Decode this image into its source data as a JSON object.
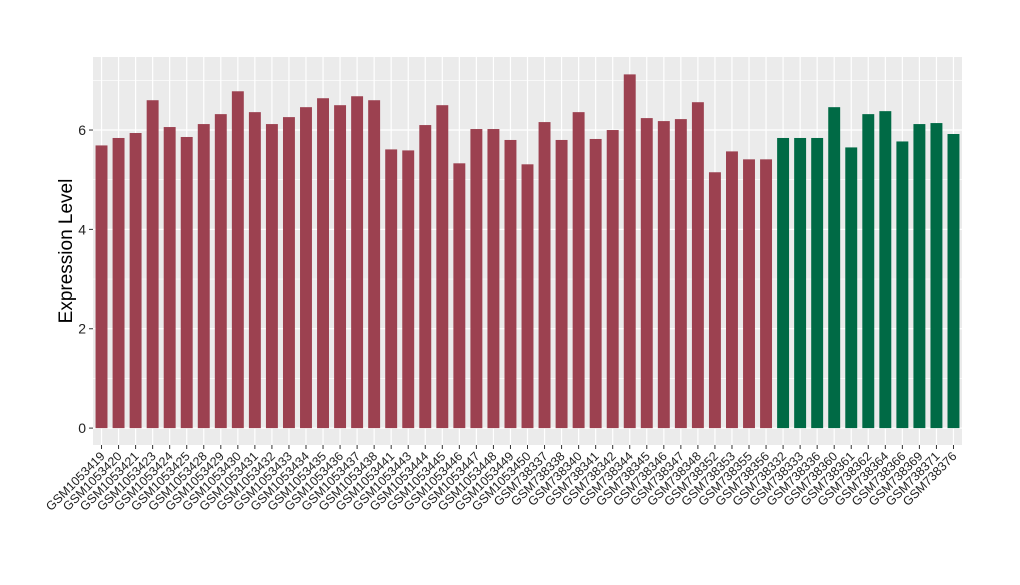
{
  "chart_data": {
    "type": "bar",
    "title": "",
    "xlabel": "",
    "ylabel": "Expression Level",
    "ylim": [
      -0.34,
      7.47
    ],
    "yticks": [
      0,
      2,
      4,
      6
    ],
    "grid": true,
    "legend": "none",
    "colors": {
      "group1": "#9c4150",
      "group2": "#006a45",
      "panel": "#ebebeb",
      "grid": "#ffffff"
    },
    "categories": [
      "GSM1053419",
      "GSM1053420",
      "GSM1053421",
      "GSM1053423",
      "GSM1053424",
      "GSM1053425",
      "GSM1053428",
      "GSM1053429",
      "GSM1053430",
      "GSM1053431",
      "GSM1053432",
      "GSM1053433",
      "GSM1053434",
      "GSM1053435",
      "GSM1053436",
      "GSM1053437",
      "GSM1053438",
      "GSM1053441",
      "GSM1053443",
      "GSM1053444",
      "GSM1053445",
      "GSM1053446",
      "GSM1053447",
      "GSM1053448",
      "GSM1053449",
      "GSM1053450",
      "GSM738337",
      "GSM738338",
      "GSM738340",
      "GSM738341",
      "GSM738342",
      "GSM738344",
      "GSM738345",
      "GSM738346",
      "GSM738347",
      "GSM738348",
      "GSM738352",
      "GSM738353",
      "GSM738355",
      "GSM738356",
      "GSM738332",
      "GSM738333",
      "GSM738336",
      "GSM738360",
      "GSM738361",
      "GSM738362",
      "GSM738364",
      "GSM738366",
      "GSM738369",
      "GSM738371",
      "GSM738376"
    ],
    "values": [
      5.69,
      5.84,
      5.94,
      6.6,
      6.06,
      5.86,
      6.12,
      6.32,
      6.78,
      6.36,
      6.12,
      6.26,
      6.46,
      6.64,
      6.5,
      6.68,
      6.6,
      5.61,
      5.59,
      6.1,
      6.5,
      5.33,
      6.02,
      6.02,
      5.8,
      5.31,
      6.16,
      5.8,
      6.36,
      5.82,
      6.0,
      7.12,
      6.24,
      6.18,
      6.22,
      6.56,
      5.15,
      5.57,
      5.41,
      5.41,
      5.84,
      5.84,
      5.84,
      6.46,
      5.65,
      6.32,
      6.38,
      5.77,
      6.12,
      6.14,
      5.92
    ],
    "groups": [
      "group1",
      "group1",
      "group1",
      "group1",
      "group1",
      "group1",
      "group1",
      "group1",
      "group1",
      "group1",
      "group1",
      "group1",
      "group1",
      "group1",
      "group1",
      "group1",
      "group1",
      "group1",
      "group1",
      "group1",
      "group1",
      "group1",
      "group1",
      "group1",
      "group1",
      "group1",
      "group1",
      "group1",
      "group1",
      "group1",
      "group1",
      "group1",
      "group1",
      "group1",
      "group1",
      "group1",
      "group1",
      "group1",
      "group1",
      "group1",
      "group2",
      "group2",
      "group2",
      "group2",
      "group2",
      "group2",
      "group2",
      "group2",
      "group2",
      "group2",
      "group2"
    ]
  }
}
